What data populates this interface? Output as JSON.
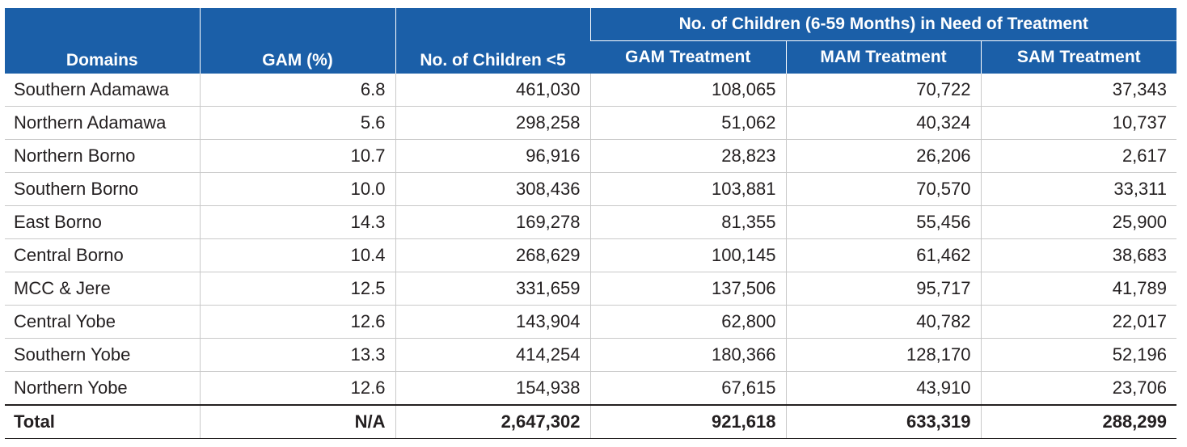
{
  "table": {
    "headers": {
      "domains": "Domains",
      "gam_pct": "GAM (%)",
      "children_u5": "No. of Children <5",
      "group": "No. of Children (6-59 Months) in Need of Treatment",
      "gam_treatment": "GAM Treatment",
      "mam_treatment": "MAM Treatment",
      "sam_treatment": "SAM Treatment"
    },
    "rows": [
      {
        "domain": "Southern Adamawa",
        "gam": "6.8",
        "children": "461,030",
        "gam_t": "108,065",
        "mam_t": "70,722",
        "sam_t": "37,343"
      },
      {
        "domain": "Northern Adamawa",
        "gam": "5.6",
        "children": "298,258",
        "gam_t": "51,062",
        "mam_t": "40,324",
        "sam_t": "10,737"
      },
      {
        "domain": "Northern Borno",
        "gam": "10.7",
        "children": "96,916",
        "gam_t": "28,823",
        "mam_t": "26,206",
        "sam_t": "2,617"
      },
      {
        "domain": "Southern Borno",
        "gam": "10.0",
        "children": "308,436",
        "gam_t": "103,881",
        "mam_t": "70,570",
        "sam_t": "33,311"
      },
      {
        "domain": "East Borno",
        "gam": "14.3",
        "children": "169,278",
        "gam_t": "81,355",
        "mam_t": "55,456",
        "sam_t": "25,900"
      },
      {
        "domain": "Central Borno",
        "gam": "10.4",
        "children": "268,629",
        "gam_t": "100,145",
        "mam_t": "61,462",
        "sam_t": "38,683"
      },
      {
        "domain": "MCC & Jere",
        "gam": "12.5",
        "children": "331,659",
        "gam_t": "137,506",
        "mam_t": "95,717",
        "sam_t": "41,789"
      },
      {
        "domain": "Central Yobe",
        "gam": "12.6",
        "children": "143,904",
        "gam_t": "62,800",
        "mam_t": "40,782",
        "sam_t": "22,017"
      },
      {
        "domain": "Southern Yobe",
        "gam": "13.3",
        "children": "414,254",
        "gam_t": "180,366",
        "mam_t": "128,170",
        "sam_t": "52,196"
      },
      {
        "domain": "Northern Yobe",
        "gam": "12.6",
        "children": "154,938",
        "gam_t": "67,615",
        "mam_t": "43,910",
        "sam_t": "23,706"
      }
    ],
    "total": {
      "domain": "Total",
      "gam": "N/A",
      "children": "2,647,302",
      "gam_t": "921,618",
      "mam_t": "633,319",
      "sam_t": "288,299"
    }
  },
  "colors": {
    "header_bg": "#1b5fa8",
    "header_text": "#ffffff",
    "body_text": "#231f20",
    "grid": "#c9c9c9"
  }
}
